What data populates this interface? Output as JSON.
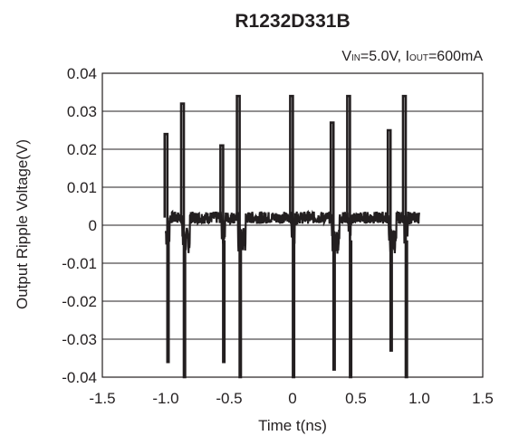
{
  "chart_data": {
    "type": "line",
    "title": "R1232D331B",
    "condition": {
      "v_main": "V",
      "v_sub": "IN",
      "v_rest": "=5.0V, ",
      "i_main": "I",
      "i_sub": "OUT",
      "i_rest": "=600mA"
    },
    "xlabel": "Time t(ns)",
    "ylabel": "Output Ripple Voltage(V)",
    "xlim": [
      -1.5,
      1.5
    ],
    "ylim": [
      -0.04,
      0.04
    ],
    "xticks": [
      "-1.5",
      "-1.0",
      "-0.5",
      "0",
      "0.5",
      "1.0",
      "1.5"
    ],
    "yticks": [
      "0.04",
      "0.03",
      "0.02",
      "0.01",
      "0",
      "-0.01",
      "-0.02",
      "-0.03",
      "-0.04"
    ],
    "grid": "horizontal",
    "series": [
      {
        "color": "#231f20",
        "x_range": [
          -1.0,
          1.0
        ],
        "spikes": [
          {
            "x": -1.0,
            "max": 0.024,
            "min": -0.036
          },
          {
            "x": -0.87,
            "max": 0.032,
            "min": -0.04
          },
          {
            "x": -0.56,
            "max": 0.021,
            "min": -0.036
          },
          {
            "x": -0.43,
            "max": 0.034,
            "min": -0.04
          },
          {
            "x": -0.01,
            "max": 0.034,
            "min": -0.04
          },
          {
            "x": 0.31,
            "max": 0.027,
            "min": -0.038
          },
          {
            "x": 0.44,
            "max": 0.034,
            "min": -0.04
          },
          {
            "x": 0.76,
            "max": 0.025,
            "min": -0.033
          },
          {
            "x": 0.88,
            "max": 0.034,
            "min": -0.04
          }
        ]
      }
    ]
  }
}
